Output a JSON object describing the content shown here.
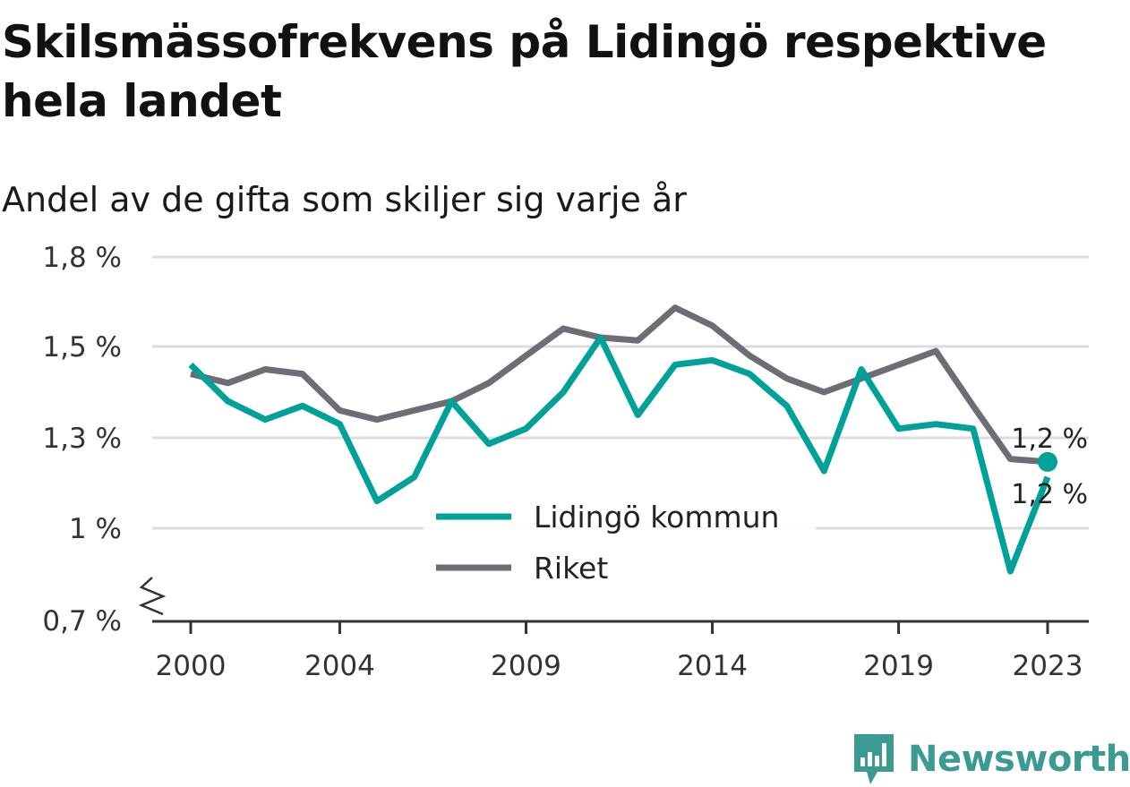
{
  "title": "Skilsmässofrekvens på Lidingö respektive hela landet",
  "subtitle": "Andel av de gifta som skiljer sig varje år",
  "brand": {
    "name": "Newsworthy",
    "color": "#3b9a92",
    "icon": "newsworthy-logo-icon"
  },
  "chart_data": {
    "type": "line",
    "x": [
      2000,
      2001,
      2002,
      2003,
      2004,
      2005,
      2006,
      2007,
      2008,
      2009,
      2010,
      2011,
      2012,
      2013,
      2014,
      2015,
      2016,
      2017,
      2018,
      2019,
      2020,
      2021,
      2022,
      2023
    ],
    "x_tick_labels": [
      "2000",
      "2004",
      "2009",
      "2014",
      "2019",
      "2023"
    ],
    "x_tick_values": [
      2000,
      2004,
      2009,
      2014,
      2019,
      2023
    ],
    "y_tick_labels": [
      "0,7 %",
      "1 %",
      "1,3 %",
      "1,5 %",
      "1,8 %"
    ],
    "y_tick_values": [
      0.7,
      1.0,
      1.3,
      1.5,
      1.8
    ],
    "y_axis_broken": true,
    "grid": true,
    "legend_position": "center-bottom",
    "series": [
      {
        "name": "Lidingö kommun",
        "color": "#00a198",
        "values": [
          1.46,
          1.38,
          1.34,
          1.37,
          1.33,
          1.09,
          1.17,
          1.38,
          1.28,
          1.32,
          1.4,
          1.53,
          1.35,
          1.46,
          1.47,
          1.44,
          1.37,
          1.19,
          1.45,
          1.32,
          1.33,
          1.32,
          0.86,
          1.17
        ],
        "end_label": "1,2 %"
      },
      {
        "name": "Riket",
        "color": "#6e6c74",
        "values": [
          1.44,
          1.42,
          1.45,
          1.44,
          1.36,
          1.34,
          1.36,
          1.38,
          1.42,
          1.48,
          1.56,
          1.53,
          1.52,
          1.63,
          1.57,
          1.48,
          1.43,
          1.4,
          1.43,
          1.46,
          1.49,
          1.37,
          1.23,
          1.22
        ],
        "end_label": "1,2 %"
      }
    ]
  }
}
